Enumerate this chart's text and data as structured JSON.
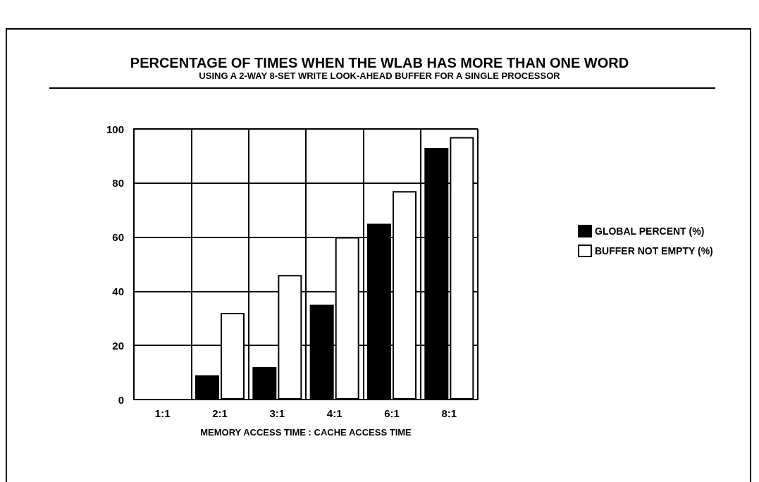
{
  "chart_data": {
    "type": "bar",
    "title": "PERCENTAGE OF TIMES WHEN THE WLAB HAS MORE THAN ONE WORD",
    "subtitle": "USING A 2-WAY 8-SET WRITE LOOK-AHEAD BUFFER FOR A SINGLE PROCESSOR",
    "xlabel": "MEMORY ACCESS TIME : CACHE ACCESS TIME",
    "categories": [
      "1:1",
      "2:1",
      "3:1",
      "4:1",
      "6:1",
      "8:1"
    ],
    "series": [
      {
        "name": "GLOBAL PERCENT (%)",
        "color": "#000000",
        "values": [
          0,
          9,
          12,
          35,
          65,
          93
        ]
      },
      {
        "name": "BUFFER NOT EMPTY (%)",
        "color": "#ffffff",
        "values": [
          0,
          32,
          46,
          60,
          77,
          97
        ]
      }
    ],
    "ylim": [
      0,
      100
    ],
    "yticks": [
      0,
      20,
      40,
      60,
      80,
      100
    ],
    "grid": true,
    "legend": "right"
  }
}
